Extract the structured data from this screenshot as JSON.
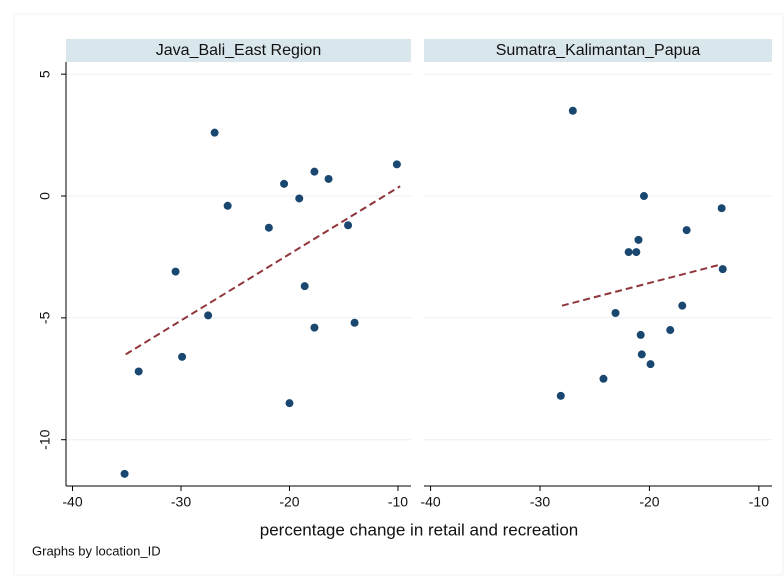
{
  "chart_data": [
    {
      "type": "scatter",
      "title": "Java_Bali_East Region",
      "xlim": [
        -40.6,
        -8.8
      ],
      "ylim": [
        -11.9,
        5.5
      ],
      "xticks": [
        -40,
        -30,
        -20,
        -10
      ],
      "yticks": [
        -10,
        -5,
        0,
        5
      ],
      "grid": true,
      "series": [
        {
          "color": "#1a476f",
          "x": [
            -35.2,
            -33.9,
            -30.5,
            -29.9,
            -27.5,
            -26.9,
            -25.7,
            -21.9,
            -20.5,
            -20.0,
            -19.1,
            -18.6,
            -17.7,
            -17.7,
            -16.4,
            -14.6,
            -14.0,
            -10.1
          ],
          "values": [
            -11.4,
            -7.2,
            -3.1,
            -6.6,
            -4.9,
            2.6,
            -0.4,
            -1.3,
            0.5,
            -8.5,
            -0.1,
            -3.7,
            -5.4,
            1.0,
            0.7,
            -1.2,
            -5.2,
            1.3
          ]
        }
      ],
      "fit": {
        "color": "#90353b",
        "x": [
          -35.1,
          -9.8
        ],
        "values": [
          -6.5,
          0.4
        ]
      }
    },
    {
      "type": "scatter",
      "title": "Sumatra_Kalimantan_Papua",
      "xlim": [
        -40.6,
        -8.8
      ],
      "ylim": [
        -11.9,
        5.5
      ],
      "xticks": [
        -40,
        -30,
        -20,
        -10
      ],
      "yticks": [
        -10,
        -5,
        0,
        5
      ],
      "grid": true,
      "series": [
        {
          "color": "#1a476f",
          "x": [
            -28.1,
            -27.0,
            -24.2,
            -23.1,
            -21.9,
            -21.2,
            -21.0,
            -20.8,
            -20.7,
            -20.5,
            -19.9,
            -18.1,
            -17.0,
            -16.6,
            -13.4,
            -13.3
          ],
          "values": [
            -8.2,
            3.5,
            -7.5,
            -4.8,
            -2.3,
            -2.3,
            -1.8,
            -5.7,
            -6.5,
            0.0,
            -6.9,
            -5.5,
            -4.5,
            -1.4,
            -0.5,
            -3.0
          ]
        }
      ],
      "fit": {
        "color": "#90353b",
        "x": [
          -28.0,
          -13.4
        ],
        "values": [
          -4.5,
          -2.8
        ]
      }
    }
  ],
  "xlabel": "percentage change in retail and recreation",
  "note": "Graphs by location_ID"
}
